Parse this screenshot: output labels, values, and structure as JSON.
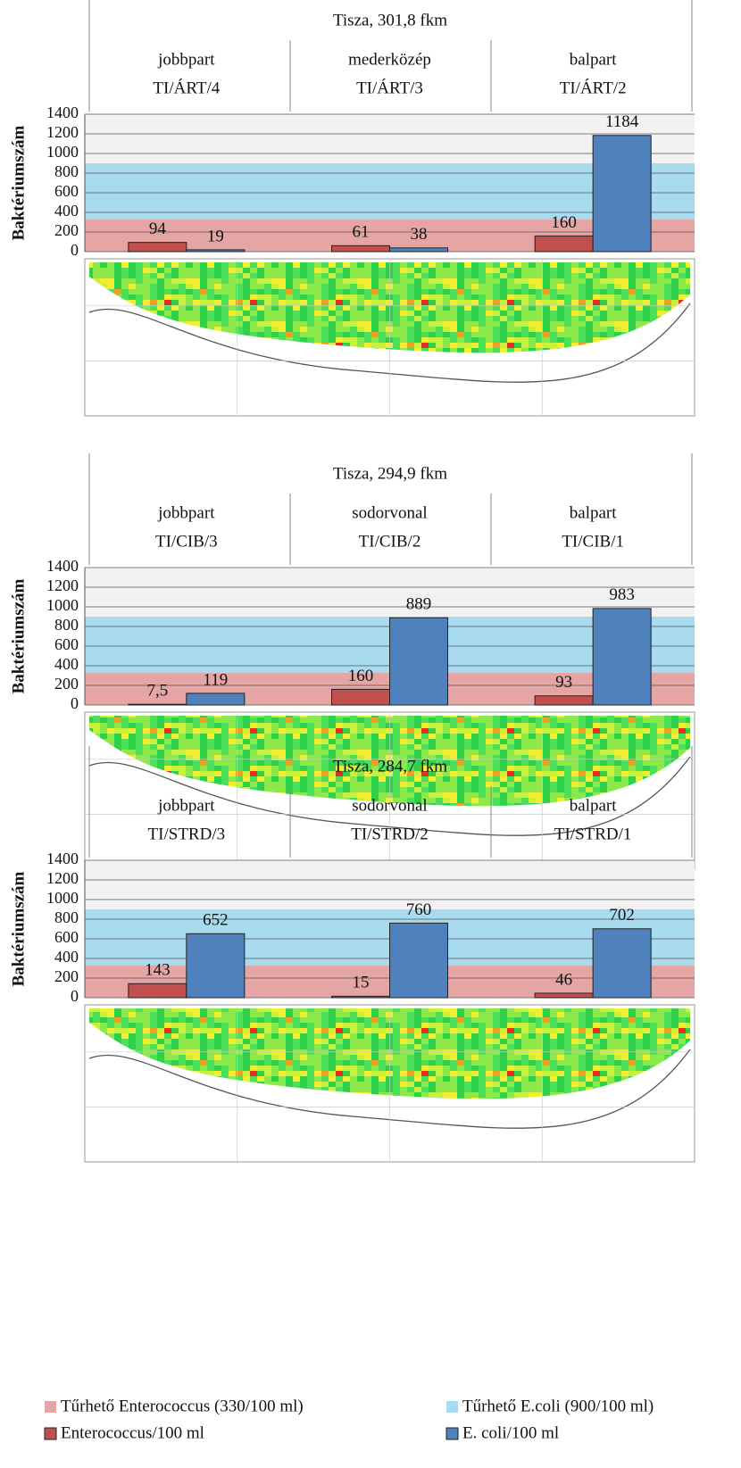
{
  "chart_data": [
    {
      "type": "bar",
      "title": "Tisza, 301,8 fkm",
      "categories": [
        "jobbpart",
        "mederközép",
        "balpart"
      ],
      "category_codes": [
        "TI/ÁRT/4",
        "TI/ÁRT/3",
        "TI/ÁRT/2"
      ],
      "ylabel": "Baktériumszám",
      "series": [
        {
          "name": "Enterococcus/100 ml",
          "color": "#c0504d",
          "values": [
            94,
            61,
            160
          ]
        },
        {
          "name": "E. coli/100 ml",
          "color": "#4f81bd",
          "values": [
            19,
            38,
            1184
          ]
        }
      ],
      "bands": [
        {
          "name": "Tűrhető Enterococcus (330/100 ml)",
          "color": "#e6a5a5",
          "value": 330
        },
        {
          "name": "Tűrhető E.coli (900/100 ml)",
          "color": "#a8dbee",
          "value": 900
        }
      ],
      "ylim": [
        0,
        1400
      ],
      "yticks": [
        0,
        200,
        400,
        600,
        800,
        1000,
        1200,
        1400
      ],
      "grid": true
    },
    {
      "type": "bar",
      "title": "Tisza, 294,9 fkm",
      "categories": [
        "jobbpart",
        "sodorvonal",
        "balpart"
      ],
      "category_codes": [
        "TI/CIB/3",
        "TI/CIB/2",
        "TI/CIB/1"
      ],
      "ylabel": "Baktériumszám",
      "series": [
        {
          "color": "#c0504d",
          "values": [
            7.5,
            160,
            93
          ],
          "value_labels": [
            "7,5",
            "160",
            "93"
          ]
        },
        {
          "color": "#4f81bd",
          "values": [
            119,
            889,
            983
          ]
        }
      ],
      "bands": [
        {
          "color": "#e6a5a5",
          "value": 330
        },
        {
          "color": "#a8dbee",
          "value": 900
        }
      ],
      "ylim": [
        0,
        1400
      ],
      "yticks": [
        0,
        200,
        400,
        600,
        800,
        1000,
        1200,
        1400
      ],
      "grid": true
    },
    {
      "type": "bar",
      "title": "Tisza, 284,7 fkm",
      "categories": [
        "jobbpart",
        "sodorvonal",
        "balpart"
      ],
      "category_codes": [
        "TI/STRD/3",
        "TI/STRD/2",
        "TI/STRD/1"
      ],
      "ylabel": "Baktériumszám",
      "series": [
        {
          "color": "#c0504d",
          "values": [
            143,
            15,
            46
          ]
        },
        {
          "color": "#4f81bd",
          "values": [
            652,
            760,
            702
          ]
        }
      ],
      "bands": [
        {
          "color": "#e6a5a5",
          "value": 330
        },
        {
          "color": "#a8dbee",
          "value": 900
        }
      ],
      "ylim": [
        0,
        1400
      ],
      "yticks": [
        0,
        200,
        400,
        600,
        800,
        1000,
        1200,
        1400
      ],
      "grid": true
    }
  ]
}
